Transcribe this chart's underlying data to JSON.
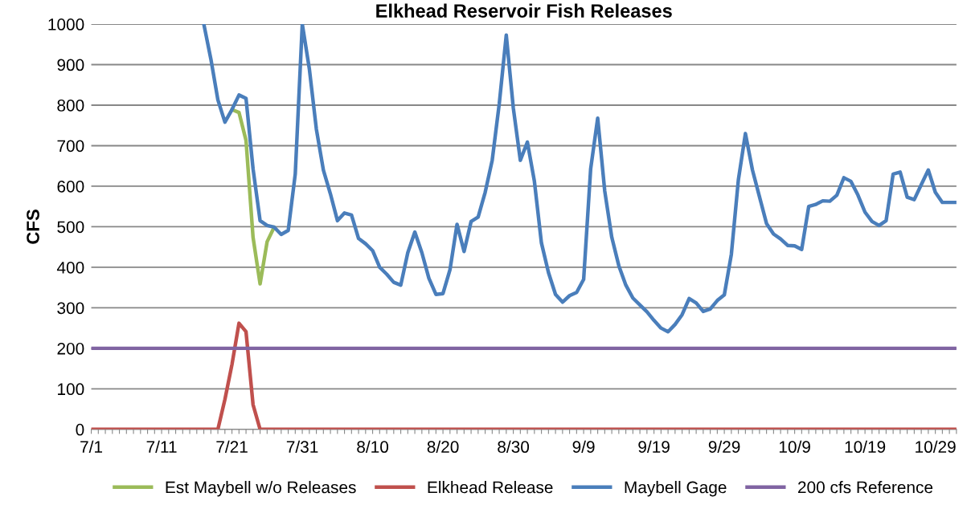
{
  "chart_data": {
    "type": "line",
    "title": "Elkhead Reservoir Fish Releases",
    "ylabel": "CFS",
    "categories": [
      "7/1",
      null,
      null,
      null,
      null,
      null,
      null,
      null,
      null,
      null,
      "7/11",
      null,
      null,
      null,
      null,
      null,
      null,
      null,
      null,
      null,
      "7/21",
      null,
      null,
      null,
      null,
      null,
      null,
      null,
      null,
      null,
      "7/31",
      null,
      null,
      null,
      null,
      null,
      null,
      null,
      null,
      null,
      "8/10",
      null,
      null,
      null,
      null,
      null,
      null,
      null,
      null,
      null,
      "8/20",
      null,
      null,
      null,
      null,
      null,
      null,
      null,
      null,
      null,
      "8/30",
      null,
      null,
      null,
      null,
      null,
      null,
      null,
      null,
      null,
      "9/9",
      null,
      null,
      null,
      null,
      null,
      null,
      null,
      null,
      null,
      "9/19",
      null,
      null,
      null,
      null,
      null,
      null,
      null,
      null,
      null,
      "9/29",
      null,
      null,
      null,
      null,
      null,
      null,
      null,
      null,
      null,
      "10/9",
      null,
      null,
      null,
      null,
      null,
      null,
      null,
      null,
      null,
      "10/19",
      null,
      null,
      null,
      null,
      null,
      null,
      null,
      null,
      null,
      "10/29",
      null,
      null,
      null
    ],
    "series": [
      {
        "name": "Est Maybell w/o Releases",
        "color": "#9bbb59",
        "values": [
          null,
          null,
          null,
          null,
          null,
          null,
          null,
          null,
          null,
          null,
          null,
          null,
          null,
          null,
          null,
          null,
          null,
          null,
          null,
          null,
          789,
          782,
          713,
          474,
          359,
          463,
          499,
          null,
          null,
          null,
          null,
          null,
          null,
          null,
          null,
          null,
          null,
          null,
          null,
          null,
          null,
          null,
          null,
          null,
          null,
          null,
          null,
          null,
          null,
          null,
          null,
          null,
          null,
          null,
          null,
          null,
          null,
          null,
          null,
          null,
          null,
          null,
          null,
          null,
          null,
          null,
          null,
          null,
          null,
          null,
          null,
          null,
          null,
          null,
          null,
          null,
          null,
          null,
          null,
          null,
          null,
          null,
          null,
          null,
          null,
          null,
          null,
          null,
          null,
          null,
          null,
          null,
          null,
          null,
          null,
          null,
          null,
          null,
          null,
          null,
          null,
          null,
          null,
          null,
          null,
          null,
          null,
          null,
          null,
          null,
          null,
          null,
          null,
          null,
          null,
          null,
          null,
          null,
          null,
          null,
          null,
          null,
          null,
          null
        ]
      },
      {
        "name": "Elkhead Release",
        "color": "#c0504d",
        "values": [
          0,
          0,
          0,
          0,
          0,
          0,
          0,
          0,
          0,
          0,
          0,
          0,
          0,
          0,
          0,
          0,
          0,
          0,
          0,
          74,
          160,
          262,
          241,
          61,
          0,
          0,
          0,
          0,
          0,
          0,
          0,
          0,
          0,
          0,
          0,
          0,
          0,
          0,
          0,
          0,
          0,
          0,
          0,
          0,
          0,
          0,
          0,
          0,
          0,
          0,
          0,
          0,
          0,
          0,
          0,
          0,
          0,
          0,
          0,
          0,
          0,
          0,
          0,
          0,
          0,
          0,
          0,
          0,
          0,
          0,
          0,
          0,
          0,
          0,
          0,
          0,
          0,
          0,
          0,
          0,
          0,
          0,
          0,
          0,
          0,
          0,
          0,
          0,
          0,
          0,
          0,
          0,
          0,
          0,
          0,
          0,
          0,
          0,
          0,
          0,
          0,
          0,
          0,
          0,
          0,
          0,
          0,
          0,
          0,
          0,
          0,
          0,
          0,
          0,
          0,
          0,
          0,
          0,
          0,
          0,
          0,
          0,
          0,
          0
        ]
      },
      {
        "name": "Maybell Gage",
        "color": "#4a7ebb",
        "values": [
          null,
          null,
          null,
          null,
          null,
          null,
          null,
          null,
          null,
          null,
          null,
          null,
          null,
          null,
          null,
          null,
          1000,
          914,
          813,
          758,
          789,
          825,
          817,
          643,
          515,
          503,
          499,
          481,
          491,
          630,
          1000,
          890,
          741,
          640,
          581,
          515,
          534,
          529,
          471,
          458,
          441,
          400,
          383,
          363,
          356,
          436,
          487,
          436,
          373,
          333,
          335,
          394,
          506,
          439,
          513,
          524,
          585,
          664,
          803,
          973,
          793,
          664,
          709,
          612,
          460,
          387,
          333,
          314,
          330,
          338,
          370,
          643,
          768,
          588,
          474,
          404,
          356,
          324,
          307,
          290,
          269,
          250,
          241,
          259,
          283,
          323,
          312,
          291,
          297,
          318,
          332,
          432,
          616,
          730,
          640,
          574,
          508,
          482,
          470,
          454,
          453,
          444,
          550,
          555,
          564,
          563,
          578,
          621,
          612,
          578,
          536,
          513,
          503,
          515,
          630,
          635,
          573,
          567,
          604,
          640,
          585,
          560,
          560,
          560
        ]
      },
      {
        "name": "200 cfs Reference",
        "color": "#8064a2",
        "values": [
          200,
          200,
          200,
          200,
          200,
          200,
          200,
          200,
          200,
          200,
          200,
          200,
          200,
          200,
          200,
          200,
          200,
          200,
          200,
          200,
          200,
          200,
          200,
          200,
          200,
          200,
          200,
          200,
          200,
          200,
          200,
          200,
          200,
          200,
          200,
          200,
          200,
          200,
          200,
          200,
          200,
          200,
          200,
          200,
          200,
          200,
          200,
          200,
          200,
          200,
          200,
          200,
          200,
          200,
          200,
          200,
          200,
          200,
          200,
          200,
          200,
          200,
          200,
          200,
          200,
          200,
          200,
          200,
          200,
          200,
          200,
          200,
          200,
          200,
          200,
          200,
          200,
          200,
          200,
          200,
          200,
          200,
          200,
          200,
          200,
          200,
          200,
          200,
          200,
          200,
          200,
          200,
          200,
          200,
          200,
          200,
          200,
          200,
          200,
          200,
          200,
          200,
          200,
          200,
          200,
          200,
          200,
          200,
          200,
          200,
          200,
          200,
          200,
          200,
          200,
          200,
          200,
          200,
          200,
          200,
          200,
          200,
          200,
          200
        ]
      }
    ],
    "ylim": [
      0,
      1000
    ],
    "yticks": [
      0,
      100,
      200,
      300,
      400,
      500,
      600,
      700,
      800,
      900,
      1000
    ],
    "grid": "y",
    "legend": "bottom",
    "marker": "none",
    "line_style": "solid"
  }
}
